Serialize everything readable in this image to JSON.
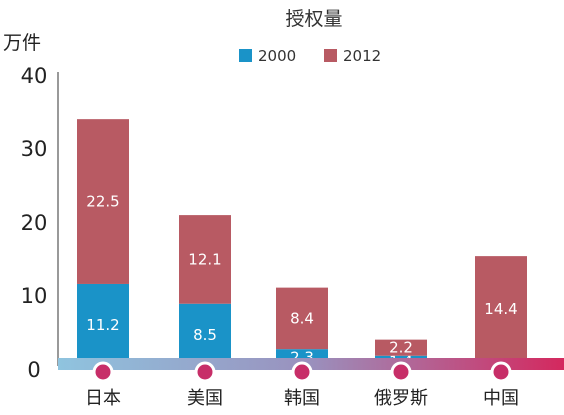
{
  "chart_data": {
    "type": "bar",
    "stacked": true,
    "title": "授权量",
    "ylabel": "万件",
    "xlabel": "",
    "categories": [
      "日本",
      "美国",
      "韩国",
      "俄罗斯",
      "中国"
    ],
    "series": [
      {
        "name": "2000",
        "color": "#1a93c8",
        "values": [
          11.2,
          8.5,
          2.3,
          1.4,
          0.6
        ]
      },
      {
        "name": "2012",
        "color": "#b85a63",
        "values": [
          22.5,
          12.1,
          8.4,
          2.2,
          14.4
        ]
      }
    ],
    "ylim": [
      0,
      40
    ],
    "yticks": [
      "0",
      "10",
      "20",
      "30",
      "40"
    ],
    "grid": false,
    "legend_position": "top-center"
  }
}
